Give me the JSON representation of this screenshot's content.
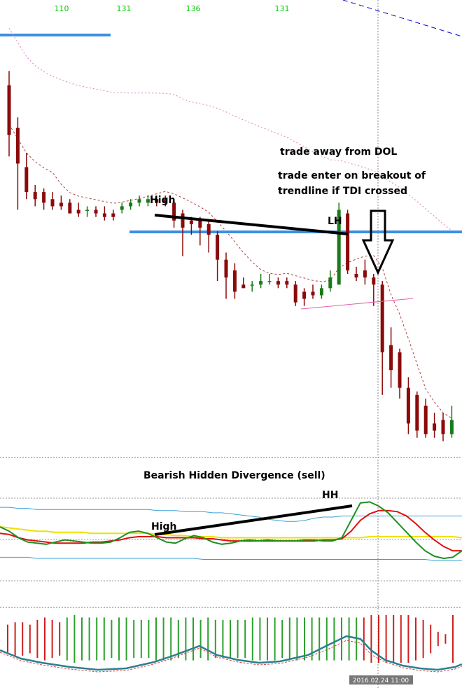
{
  "header_numbers": [
    "110",
    "131",
    "136",
    "131"
  ],
  "annotations": {
    "trade_away": "trade away from DOL",
    "trade_enter_line1": "trade enter on breakout of",
    "trade_enter_line2": "trendline if TDI crossed",
    "high_price": "High",
    "lh": "LH",
    "divergence_title": "Bearish Hidden Divergence (sell)",
    "hh": "HH",
    "high_tdi": "High"
  },
  "date_label": "2016.02.24 11:00",
  "colors": {
    "bull": "#1a7a1a",
    "bear": "#8b0a0a",
    "level_line": "#3d8fe0",
    "rsi_green": "#1e8f1e",
    "signal_red": "#e01010",
    "midband_yellow": "#f0e000",
    "band_blue": "#3aa0d8",
    "momentum_teal": "#2a8090",
    "momentum_red": "#d84040",
    "histogram_green": "#2ea02e",
    "histogram_red": "#d02020",
    "annotation_black": "#000000",
    "trendline_pink": "#e060b0"
  },
  "chart_data": [
    {
      "type": "candlestick",
      "title": "",
      "candles": [
        {
          "o": 50,
          "h": 54,
          "l": 30,
          "c": 36
        },
        {
          "o": 38,
          "h": 41,
          "l": 15,
          "c": 28
        },
        {
          "o": 27,
          "h": 31,
          "l": 18,
          "c": 20
        },
        {
          "o": 20,
          "h": 22,
          "l": 16,
          "c": 18
        },
        {
          "o": 20,
          "h": 21,
          "l": 15,
          "c": 17
        },
        {
          "o": 18,
          "h": 20,
          "l": 15,
          "c": 16
        },
        {
          "o": 17,
          "h": 19,
          "l": 15,
          "c": 16
        },
        {
          "o": 17,
          "h": 18,
          "l": 14,
          "c": 14
        },
        {
          "o": 15,
          "h": 17,
          "l": 13,
          "c": 14
        },
        {
          "o": 15,
          "h": 16,
          "l": 13,
          "c": 15
        },
        {
          "o": 15,
          "h": 16,
          "l": 13,
          "c": 14
        },
        {
          "o": 14,
          "h": 16,
          "l": 12,
          "c": 13
        },
        {
          "o": 14,
          "h": 15,
          "l": 12,
          "c": 13
        },
        {
          "o": 15,
          "h": 17,
          "l": 14,
          "c": 16
        },
        {
          "o": 16,
          "h": 18,
          "l": 15,
          "c": 17
        },
        {
          "o": 17,
          "h": 19,
          "l": 16,
          "c": 18
        },
        {
          "o": 17,
          "h": 19,
          "l": 16,
          "c": 18
        },
        {
          "o": 18,
          "h": 19,
          "l": 16,
          "c": 17
        },
        {
          "o": 18,
          "h": 19,
          "l": 16,
          "c": 17
        },
        {
          "o": 17,
          "h": 18,
          "l": 10,
          "c": 12
        },
        {
          "o": 14,
          "h": 15,
          "l": 2,
          "c": 10
        },
        {
          "o": 12,
          "h": 13,
          "l": 8,
          "c": 11
        },
        {
          "o": 12,
          "h": 13,
          "l": 5,
          "c": 10
        },
        {
          "o": 11,
          "h": 12,
          "l": 3,
          "c": 8
        },
        {
          "o": 8,
          "h": 9,
          "l": -5,
          "c": 1
        },
        {
          "o": 1,
          "h": 3,
          "l": -10,
          "c": -4
        },
        {
          "o": -2,
          "h": 0,
          "l": -10,
          "c": -8
        },
        {
          "o": -6,
          "h": -4,
          "l": -7,
          "c": -7
        },
        {
          "o": -6,
          "h": -5,
          "l": -8,
          "c": -6
        },
        {
          "o": -6,
          "h": -3,
          "l": -7,
          "c": -5
        },
        {
          "o": -5,
          "h": -3,
          "l": -6,
          "c": -5
        },
        {
          "o": -5,
          "h": -4,
          "l": -7,
          "c": -6
        },
        {
          "o": -5,
          "h": -4,
          "l": -7,
          "c": -6
        },
        {
          "o": -6,
          "h": -5,
          "l": -12,
          "c": -11
        },
        {
          "o": -8,
          "h": -7,
          "l": -12,
          "c": -10
        },
        {
          "o": -8,
          "h": -6,
          "l": -10,
          "c": -9
        },
        {
          "o": -9,
          "h": -6,
          "l": -10,
          "c": -7
        },
        {
          "o": -7,
          "h": -2,
          "l": -8,
          "c": -4
        },
        {
          "o": -6,
          "h": 17,
          "l": -6,
          "c": 15
        },
        {
          "o": 14,
          "h": 15,
          "l": -3,
          "c": -2
        },
        {
          "o": -3,
          "h": -1,
          "l": -5,
          "c": -4
        },
        {
          "o": -2,
          "h": 1,
          "l": -6,
          "c": -4
        },
        {
          "o": -4,
          "h": -3,
          "l": -12,
          "c": -6
        },
        {
          "o": -6,
          "h": -5,
          "l": -37,
          "c": -25
        },
        {
          "o": -23,
          "h": -18,
          "l": -35,
          "c": -30
        },
        {
          "o": -25,
          "h": -24,
          "l": -38,
          "c": -35
        },
        {
          "o": -35,
          "h": -32,
          "l": -48,
          "c": -45
        },
        {
          "o": -37,
          "h": -36,
          "l": -49,
          "c": -47
        },
        {
          "o": -40,
          "h": -38,
          "l": -49,
          "c": -48
        },
        {
          "o": -45,
          "h": -42,
          "l": -49,
          "c": -47
        },
        {
          "o": -44,
          "h": -42,
          "l": -50,
          "c": -48
        },
        {
          "o": -48,
          "h": -40,
          "l": -49,
          "c": -44
        }
      ],
      "ylim": [
        -52,
        70
      ]
    },
    {
      "type": "line",
      "title": "",
      "series": [
        {
          "values": [
            60,
            56,
            50,
            46,
            45,
            44,
            46,
            48,
            47,
            46,
            45,
            45,
            46,
            50,
            55,
            56,
            54,
            50,
            46,
            45,
            49,
            52,
            50,
            46,
            44,
            45,
            47,
            48,
            47,
            48,
            47,
            47,
            47,
            48,
            48,
            47,
            47,
            50,
            66,
            82,
            83,
            79,
            73,
            64,
            55,
            46,
            38,
            33,
            31,
            32,
            38
          ]
        },
        {
          "values": [
            54,
            53,
            50,
            48,
            47,
            46,
            45,
            45,
            45,
            45,
            46,
            46,
            47,
            48,
            50,
            51,
            51,
            51,
            50,
            50,
            50,
            50,
            49,
            49,
            48,
            47,
            47,
            47,
            47,
            47,
            47,
            47,
            47,
            47,
            47,
            48,
            48,
            49,
            56,
            66,
            72,
            75,
            75,
            74,
            70,
            63,
            55,
            48,
            42,
            38,
            38
          ]
        },
        {
          "values": [
            60,
            59,
            58,
            57,
            56,
            56,
            55,
            55,
            55,
            55,
            54,
            54,
            54,
            54,
            54,
            54,
            54,
            53,
            53,
            52,
            52,
            51,
            51,
            51,
            50,
            50,
            50,
            50,
            50,
            50,
            50,
            50,
            50,
            50,
            50,
            50,
            50,
            50,
            50,
            50,
            51,
            51,
            51,
            51,
            51,
            51,
            51,
            51,
            51,
            51,
            50
          ]
        },
        {
          "values": [
            78,
            78,
            77,
            77,
            76,
            76,
            76,
            76,
            76,
            76,
            76,
            76,
            76,
            76,
            76,
            76,
            76,
            75,
            75,
            75,
            74,
            74,
            74,
            73,
            73,
            72,
            71,
            70,
            69,
            67,
            66,
            65,
            65,
            66,
            68,
            69,
            69,
            70,
            70,
            70,
            70,
            70,
            70,
            70,
            70,
            70,
            70,
            70,
            70,
            70,
            70
          ]
        },
        {
          "values": [
            32,
            32,
            32,
            32,
            31,
            31,
            31,
            31,
            31,
            31,
            31,
            31,
            31,
            31,
            31,
            31,
            31,
            31,
            31,
            31,
            31,
            31,
            30,
            30,
            30,
            30,
            30,
            30,
            30,
            30,
            30,
            30,
            30,
            30,
            30,
            30,
            30,
            30,
            30,
            30,
            30,
            30,
            30,
            30,
            30,
            30,
            30,
            29,
            29,
            29,
            29
          ]
        }
      ],
      "ylim": [
        0,
        100
      ]
    },
    {
      "type": "bar",
      "title": "",
      "values": [
        -0.6,
        -0.7,
        -0.7,
        -0.6,
        -0.8,
        -0.9,
        -0.8,
        -0.7,
        0.9,
        1,
        0.9,
        0.9,
        0.9,
        0.9,
        0.8,
        0.9,
        0.9,
        0.8,
        0.8,
        0.8,
        0.9,
        0.9,
        0.9,
        0.8,
        0.9,
        0.9,
        0.8,
        0.9,
        0.8,
        0.8,
        0.8,
        0.8,
        0.8,
        0.9,
        0.9,
        0.9,
        0.9,
        0.8,
        0.9,
        0.9,
        0.9,
        0.9,
        0.9,
        0.9,
        0.9,
        0.9,
        0.9,
        0.9,
        -0.9,
        -1,
        -1,
        -1,
        -1,
        -1,
        -1,
        -0.9,
        -0.8,
        -0.6,
        -0.3,
        -0.2,
        -1
      ],
      "ylim": [
        -1,
        1
      ]
    }
  ]
}
